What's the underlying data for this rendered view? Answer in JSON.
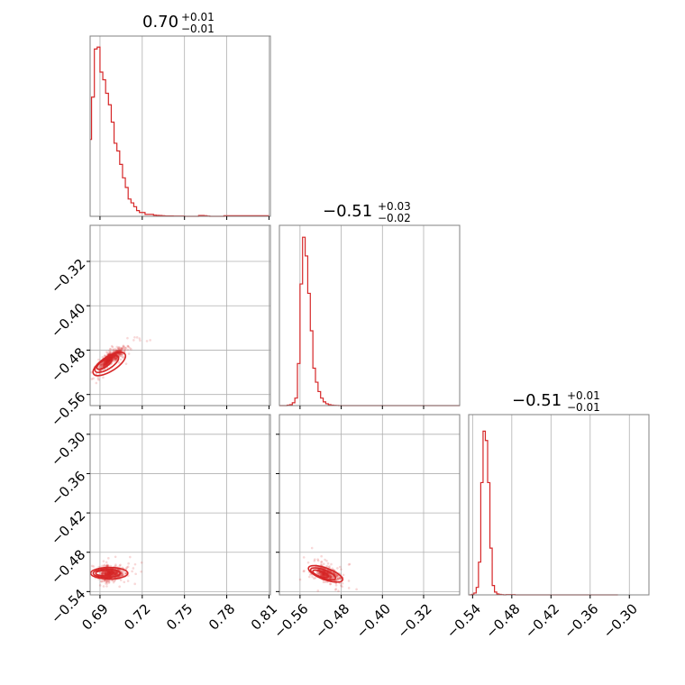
{
  "chart_data": {
    "type": "corner",
    "color": "#d62728",
    "parameters": [
      {
        "title": {
          "median": "0.70",
          "plus": "+0.01",
          "minus": "−0.01"
        },
        "range": [
          0.68,
          0.81
        ],
        "ticks": [
          "0.69",
          "0.72",
          "0.75",
          "0.78",
          "0.81"
        ],
        "tick_values": [
          0.69,
          0.72,
          0.75,
          0.78,
          0.81
        ],
        "hist": {
          "edges_start": 0.68,
          "bin_width": 0.002,
          "counts": [
            15,
            40,
            62,
            87,
            88,
            75,
            71,
            64,
            58,
            49,
            38,
            34,
            27,
            20,
            15,
            9,
            7,
            5,
            3,
            2,
            2,
            1,
            1,
            1,
            0.6,
            0.5,
            0.4,
            0.3,
            0.2,
            0.2,
            0.2,
            0.1,
            0.1,
            0.1,
            0.1,
            0,
            0,
            0,
            0,
            0,
            0.4,
            0.4,
            0.3,
            0.1,
            0,
            0,
            0,
            0,
            0,
            0.3,
            0.3,
            0.3,
            0.3,
            0.3,
            0.3,
            0.3,
            0.3,
            0.3,
            0.3,
            0.3,
            0.3,
            0.3,
            0.3,
            0.3,
            0.3
          ],
          "max": 90
        }
      },
      {
        "title": {
          "median": "−0.51",
          "plus": "+0.03",
          "minus": "−0.02"
        },
        "range": [
          0.6,
          0.25
        ],
        "ticks_y": [
          "−0.32",
          "−0.40",
          "−0.48",
          "−0.56"
        ],
        "tick_values_y": [
          -0.32,
          -0.4,
          -0.48,
          -0.56
        ],
        "ticks_x": [
          "−0.56",
          "−0.48",
          "−0.40",
          "−0.32"
        ],
        "tick_values_x": [
          -0.56,
          -0.48,
          -0.4,
          -0.32
        ],
        "hist": {
          "edges_start": -0.6,
          "bin_width": 0.005,
          "counts": [
            0,
            0,
            0,
            0.5,
            1,
            3,
            8,
            45,
            130,
            180,
            160,
            120,
            80,
            40,
            25,
            15,
            8,
            4,
            2,
            1,
            0.5,
            0.3,
            0.2,
            0,
            0,
            0,
            0,
            0,
            0,
            0,
            0,
            0,
            0,
            0,
            0,
            0,
            0,
            0,
            0,
            0,
            0,
            0,
            0,
            0,
            0,
            0,
            0,
            0,
            0,
            0,
            0,
            0,
            0,
            0,
            0,
            0,
            0,
            0,
            0,
            0,
            0,
            0,
            0,
            0,
            0,
            0,
            0,
            0,
            0,
            0
          ],
          "max": 185
        }
      },
      {
        "title": {
          "median": "−0.51",
          "plus": "+0.01",
          "minus": "−0.01"
        },
        "ticks_y": [
          "−0.30",
          "−0.36",
          "−0.42",
          "−0.48",
          "−0.54"
        ],
        "tick_values_y": [
          -0.3,
          -0.36,
          -0.42,
          -0.48,
          -0.54
        ],
        "ticks_x": [
          "−0.54",
          "−0.48",
          "−0.42",
          "−0.36",
          "−0.30"
        ],
        "tick_values_x": [
          -0.54,
          -0.48,
          -0.42,
          -0.36,
          -0.3
        ],
        "hist": {
          "edges_start": -0.545,
          "bin_width": 0.0035,
          "counts": [
            0,
            0.5,
            2,
            8,
            35,
            120,
            175,
            165,
            120,
            50,
            10,
            3,
            1,
            0.5,
            0.3,
            0,
            0.3,
            0.3,
            0.3,
            0.3,
            0,
            0,
            0,
            0,
            0,
            0,
            0,
            0,
            0,
            0,
            0,
            0,
            0,
            0,
            0,
            0,
            0,
            0,
            0,
            0,
            0,
            0,
            0,
            0,
            0,
            0,
            0,
            0,
            0,
            0,
            0,
            0,
            0,
            0,
            0,
            0,
            0,
            0,
            0,
            0,
            0,
            0,
            0,
            0,
            0
          ],
          "max": 185
        }
      }
    ],
    "scatter_2_1": {
      "x_range": [
        0.68,
        0.81
      ],
      "y_range": [
        -0.6,
        -0.25
      ],
      "contour_center": [
        0.695,
        -0.506
      ],
      "slope": 1.5
    },
    "scatter_3_1": {
      "x_range": [
        0.68,
        0.81
      ],
      "y_range": [
        -0.545,
        -0.27
      ],
      "contour_center": [
        0.696,
        -0.512
      ]
    },
    "scatter_3_2": {
      "x_range": [
        -0.6,
        -0.25
      ],
      "y_range": [
        -0.545,
        -0.27
      ],
      "contour_center": [
        -0.515,
        -0.513
      ]
    }
  }
}
